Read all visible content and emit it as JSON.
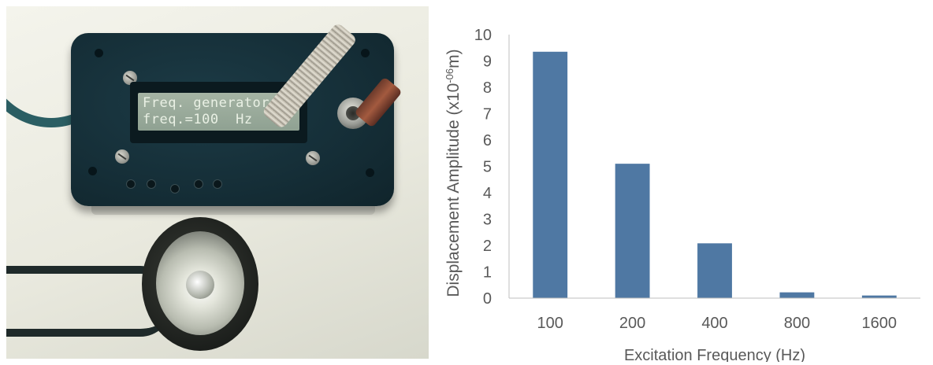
{
  "photo": {
    "lcd_line_1": "Freq. generator",
    "lcd_line_2": "freq.=100  Hz"
  },
  "chart_data": {
    "type": "bar",
    "categories": [
      "100",
      "200",
      "400",
      "800",
      "1600"
    ],
    "values": [
      9.35,
      5.1,
      2.08,
      0.22,
      0.1
    ],
    "ylim": [
      0,
      10
    ],
    "yticks": [
      0,
      1,
      2,
      3,
      4,
      5,
      6,
      7,
      8,
      9,
      10
    ],
    "xlabel": "Excitation Frequency (Hz)",
    "ylabel": "Displacement Amplitude (x10-06m)",
    "ylabel_parts": {
      "before": "Displacement Amplitude (x10",
      "sup": "-06",
      "after": "m)"
    },
    "grid": false,
    "legend": "none",
    "bar_color": "#4f78a3",
    "axis_color": "#595959"
  }
}
